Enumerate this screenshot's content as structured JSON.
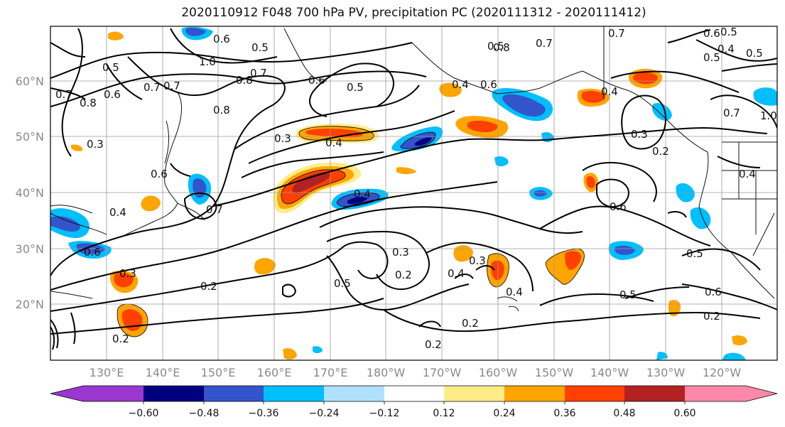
{
  "title": "2020110912 F048 700 hPa PV, precipitation PC (2020111312 - 2020111412)",
  "lat_labels": [
    "60°N",
    "50°N",
    "40°N",
    "30°N",
    "20°N"
  ],
  "lon_labels": [
    "130°E",
    "140°E",
    "150°E",
    "160°E",
    "170°E",
    "180°W",
    "170°W",
    "160°W",
    "150°W",
    "140°W",
    "130°W",
    "120°W"
  ],
  "colorbar": {
    "ticks": [
      "−0.60",
      "−0.48",
      "−0.36",
      "−0.24",
      "−0.12",
      "0.12",
      "0.24",
      "0.36",
      "0.48",
      "0.60"
    ],
    "colors": [
      "#9a37cf",
      "#00007f",
      "#3355cc",
      "#00bfff",
      "#b0e0ff",
      "#ffffff",
      "#ffeb88",
      "#ffa500",
      "#ff4000",
      "#b22222",
      "#ff88aa"
    ]
  },
  "contour_labels": [
    "0.6",
    "0.5",
    "0.7",
    "0.5",
    "1.0",
    "0.6",
    "0.7",
    "0.8",
    "0.6",
    "0.8",
    "0.7",
    "0.5",
    "0.5",
    "0.5",
    "0.4",
    "0.6",
    "0.5",
    "0.7",
    "0.7",
    "0.3",
    "0.4",
    "0.6",
    "0.8",
    "0.2",
    "0.3",
    "0.4",
    "0.6",
    "0.7",
    "0.6",
    "0.3",
    "0.2",
    "0.5",
    "0.4",
    "0.4",
    "0.3",
    "0.2",
    "0.4",
    "0.5",
    "0.5",
    "0.6",
    "0.2",
    "0.2",
    "0.2",
    "0.6",
    "0.4",
    "0.7",
    "0.4",
    "0.3",
    "0.5",
    "0.2",
    "1.0",
    "0.4",
    "0.8",
    "0.7",
    "0.3"
  ]
}
